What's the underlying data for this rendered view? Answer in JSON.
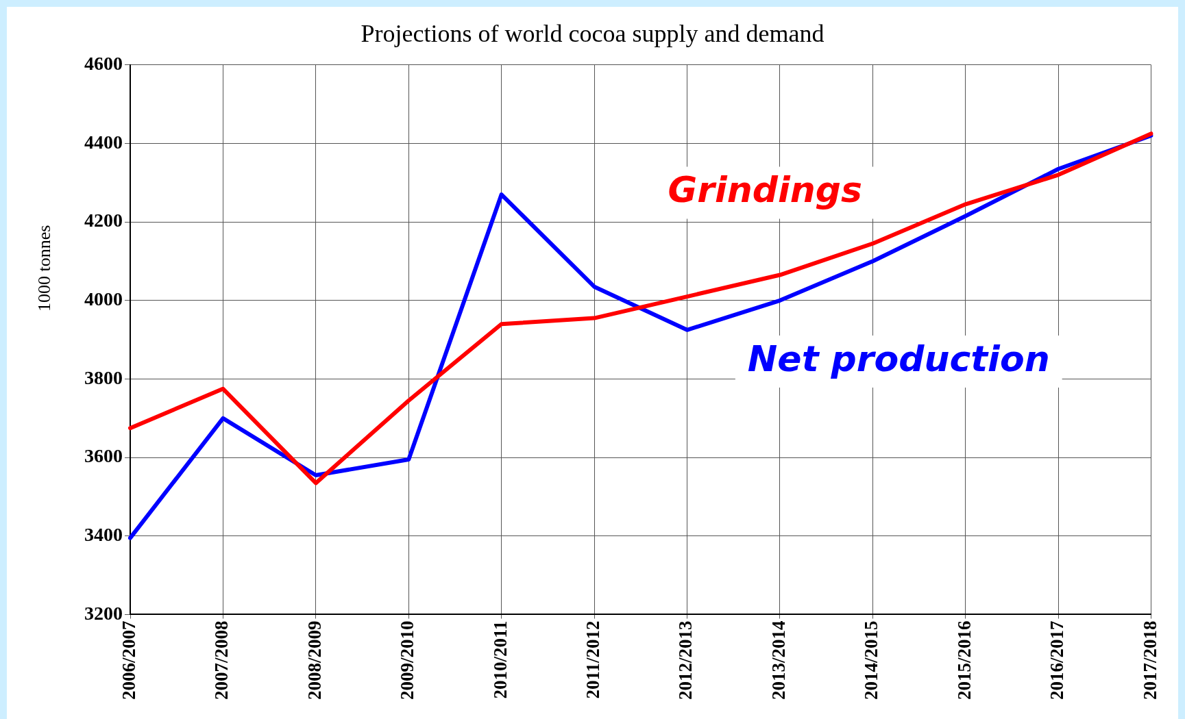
{
  "chart_data": {
    "type": "line",
    "title": "Projections of world cocoa supply and demand",
    "ylabel": "1000 tonnes",
    "categories": [
      "2006/2007",
      "2007/2008",
      "2008/2009",
      "2009/2010",
      "2010/2011",
      "2011/2012",
      "2012/2013",
      "2013/2014",
      "2014/2015",
      "2015/2016",
      "2016/2017",
      "2017/2018"
    ],
    "series": [
      {
        "name": "Grindings",
        "color": "#ff0000",
        "values": [
          3675,
          3775,
          3535,
          3745,
          3940,
          3955,
          4010,
          4065,
          4145,
          4245,
          4320,
          4425
        ]
      },
      {
        "name": "Net production",
        "color": "#0000ff",
        "values": [
          3395,
          3700,
          3555,
          3595,
          4270,
          4035,
          3925,
          4000,
          4100,
          4215,
          4335,
          4420
        ]
      }
    ],
    "ylim": [
      3200,
      4600
    ],
    "yticks": [
      3200,
      3400,
      3600,
      3800,
      4000,
      4200,
      4400,
      4600
    ],
    "grid": true,
    "legend": false,
    "marker": "none",
    "line_style": "solid"
  }
}
